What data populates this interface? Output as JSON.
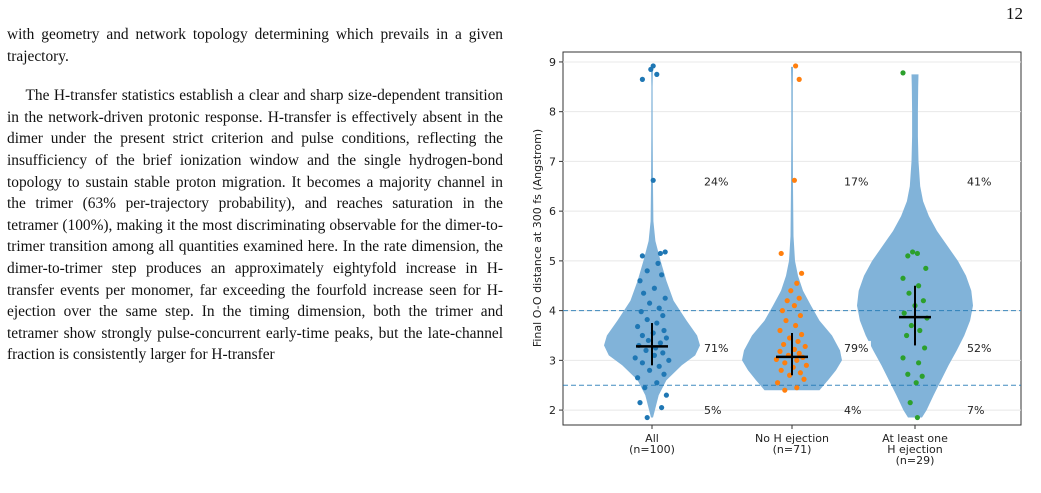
{
  "page": {
    "number": "12"
  },
  "paragraphs": [
    "with geometry and network topology determining which prevails in a given trajectory.",
    "The H-transfer statistics establish a clear and sharp size-dependent transition in the network-driven protonic response. H-transfer is effectively absent in the dimer under the present strict criterion and pulse conditions, reflecting the insufficiency of the brief ionization window and the single hydrogen-bond topology to sustain stable proton migration. It becomes a majority channel in the trimer (63% per-trajectory probability), and reaches saturation in the tetramer (100%), making it the most discriminating observable for the dimer-to-trimer transition among all quantities examined here. In the rate dimension, the dimer-to-trimer step produces an approximately eightyfold increase in H-transfer events per monomer, far exceeding the fourfold increase seen for H-ejection over the same step. In the timing dimension, both the trimer and tetramer show strongly pulse-concurrent early-time peaks, but the late-channel fraction is consistently larger for H-transfer"
  ],
  "chart_data": {
    "type": "violin",
    "ylabel": "Final O-O distance at 300 fs (Angstrom)",
    "ylim": [
      1.7,
      9.2
    ],
    "yticks": [
      2,
      3,
      4,
      5,
      6,
      7,
      8,
      9
    ],
    "grid": true,
    "thresholds": [
      2.5,
      4.0
    ],
    "categories": [
      {
        "lines": [
          "All",
          "(n=100)"
        ],
        "color": "#1f77b4",
        "median": 3.28,
        "ci": [
          2.9,
          3.75
        ],
        "pct_above": "24%",
        "pct_mid": "71%",
        "pct_below": "5%",
        "profile": [
          [
            1.85,
            0.02
          ],
          [
            2.0,
            0.06
          ],
          [
            2.3,
            0.14
          ],
          [
            2.6,
            0.3
          ],
          [
            2.9,
            0.62
          ],
          [
            3.1,
            0.9
          ],
          [
            3.3,
            1.0
          ],
          [
            3.5,
            0.94
          ],
          [
            3.8,
            0.72
          ],
          [
            4.2,
            0.45
          ],
          [
            4.6,
            0.3
          ],
          [
            5.0,
            0.18
          ],
          [
            5.4,
            0.07
          ],
          [
            5.8,
            0.03
          ],
          [
            6.5,
            0.02
          ],
          [
            7.5,
            0.015
          ],
          [
            8.5,
            0.012
          ],
          [
            8.9,
            0.02
          ]
        ],
        "points": [
          [
            1.85,
            -0.2
          ],
          [
            2.05,
            0.4
          ],
          [
            2.15,
            -0.5
          ],
          [
            2.3,
            0.6
          ],
          [
            2.45,
            -0.3
          ],
          [
            2.55,
            0.2
          ],
          [
            2.65,
            -0.6
          ],
          [
            2.72,
            0.5
          ],
          [
            2.8,
            -0.1
          ],
          [
            2.88,
            0.3
          ],
          [
            2.95,
            -0.4
          ],
          [
            3.0,
            0.7
          ],
          [
            3.05,
            -0.7
          ],
          [
            3.1,
            0.1
          ],
          [
            3.15,
            0.45
          ],
          [
            3.2,
            -0.25
          ],
          [
            3.25,
            0.15
          ],
          [
            3.3,
            -0.55
          ],
          [
            3.35,
            0.35
          ],
          [
            3.4,
            -0.15
          ],
          [
            3.45,
            0.6
          ],
          [
            3.5,
            -0.4
          ],
          [
            3.55,
            0.05
          ],
          [
            3.6,
            0.5
          ],
          [
            3.68,
            -0.6
          ],
          [
            3.75,
            0.2
          ],
          [
            3.82,
            -0.2
          ],
          [
            3.9,
            0.45
          ],
          [
            3.98,
            -0.45
          ],
          [
            4.05,
            0.3
          ],
          [
            4.15,
            -0.1
          ],
          [
            4.25,
            0.55
          ],
          [
            4.35,
            -0.35
          ],
          [
            4.45,
            0.1
          ],
          [
            4.6,
            -0.5
          ],
          [
            4.72,
            0.4
          ],
          [
            4.8,
            -0.2
          ],
          [
            4.95,
            0.25
          ],
          [
            5.1,
            -0.4
          ],
          [
            5.15,
            0.35
          ],
          [
            5.18,
            0.55
          ],
          [
            6.62,
            0.05
          ],
          [
            8.65,
            -0.4
          ],
          [
            8.75,
            0.2
          ],
          [
            8.85,
            -0.05
          ],
          [
            8.92,
            0.05
          ]
        ]
      },
      {
        "lines": [
          "No H ejection",
          "(n=71)"
        ],
        "color": "#ff7f0e",
        "median": 3.07,
        "ci": [
          2.7,
          3.55
        ],
        "pct_above": "17%",
        "pct_mid": "79%",
        "pct_below": "4%",
        "profile": [
          [
            2.4,
            0.55
          ],
          [
            2.6,
            0.72
          ],
          [
            2.8,
            0.88
          ],
          [
            3.0,
            1.0
          ],
          [
            3.2,
            0.96
          ],
          [
            3.5,
            0.8
          ],
          [
            3.8,
            0.55
          ],
          [
            4.1,
            0.38
          ],
          [
            4.4,
            0.22
          ],
          [
            4.7,
            0.12
          ],
          [
            5.0,
            0.06
          ],
          [
            5.5,
            0.03
          ],
          [
            6.5,
            0.02
          ],
          [
            7.5,
            0.015
          ],
          [
            8.5,
            0.015
          ],
          [
            8.9,
            0.02
          ]
        ],
        "points": [
          [
            2.4,
            -0.3
          ],
          [
            2.45,
            0.2
          ],
          [
            2.55,
            -0.6
          ],
          [
            2.62,
            0.5
          ],
          [
            2.7,
            -0.1
          ],
          [
            2.75,
            0.35
          ],
          [
            2.8,
            -0.45
          ],
          [
            2.86,
            0.05
          ],
          [
            2.9,
            0.6
          ],
          [
            2.95,
            -0.3
          ],
          [
            3.0,
            0.2
          ],
          [
            3.02,
            -0.65
          ],
          [
            3.06,
            0.45
          ],
          [
            3.1,
            -0.15
          ],
          [
            3.14,
            0.3
          ],
          [
            3.18,
            -0.5
          ],
          [
            3.22,
            0.1
          ],
          [
            3.28,
            0.55
          ],
          [
            3.32,
            -0.35
          ],
          [
            3.38,
            0.25
          ],
          [
            3.45,
            -0.1
          ],
          [
            3.52,
            0.4
          ],
          [
            3.6,
            -0.5
          ],
          [
            3.7,
            0.15
          ],
          [
            3.8,
            -0.25
          ],
          [
            3.9,
            0.35
          ],
          [
            4.0,
            -0.4
          ],
          [
            4.1,
            0.1
          ],
          [
            4.2,
            -0.2
          ],
          [
            4.25,
            0.3
          ],
          [
            4.4,
            -0.05
          ],
          [
            4.55,
            0.2
          ],
          [
            4.75,
            0.4
          ],
          [
            5.15,
            -0.45
          ],
          [
            6.62,
            0.1
          ],
          [
            8.65,
            0.3
          ],
          [
            8.92,
            0.15
          ]
        ]
      },
      {
        "lines": [
          "At least one",
          "H ejection",
          "(n=29)"
        ],
        "color": "#2ca02c",
        "median": 3.87,
        "ci": [
          3.3,
          4.5
        ],
        "pct_above": "41%",
        "pct_mid": "52%",
        "pct_below": "7%",
        "profile": [
          [
            1.85,
            0.12
          ],
          [
            2.0,
            0.2
          ],
          [
            2.3,
            0.32
          ],
          [
            2.6,
            0.45
          ],
          [
            2.9,
            0.58
          ],
          [
            3.2,
            0.72
          ],
          [
            3.5,
            0.85
          ],
          [
            3.8,
            0.95
          ],
          [
            4.1,
            1.0
          ],
          [
            4.4,
            0.97
          ],
          [
            4.7,
            0.88
          ],
          [
            5.0,
            0.74
          ],
          [
            5.3,
            0.56
          ],
          [
            5.6,
            0.38
          ],
          [
            5.9,
            0.24
          ],
          [
            6.2,
            0.14
          ],
          [
            6.5,
            0.09
          ],
          [
            7.0,
            0.06
          ],
          [
            7.5,
            0.05
          ],
          [
            8.0,
            0.05
          ],
          [
            8.5,
            0.055
          ],
          [
            8.75,
            0.06
          ]
        ],
        "points": [
          [
            1.85,
            0.1
          ],
          [
            2.15,
            -0.2
          ],
          [
            2.55,
            0.05
          ],
          [
            2.68,
            0.3
          ],
          [
            2.72,
            -0.3
          ],
          [
            2.95,
            0.15
          ],
          [
            3.05,
            -0.5
          ],
          [
            3.25,
            0.4
          ],
          [
            3.5,
            -0.35
          ],
          [
            3.6,
            0.2
          ],
          [
            3.7,
            -0.15
          ],
          [
            3.85,
            0.5
          ],
          [
            3.95,
            -0.45
          ],
          [
            4.1,
            0.0
          ],
          [
            4.2,
            0.35
          ],
          [
            4.35,
            -0.25
          ],
          [
            4.5,
            0.15
          ],
          [
            4.65,
            -0.5
          ],
          [
            4.85,
            0.45
          ],
          [
            5.1,
            -0.3
          ],
          [
            5.15,
            0.1
          ],
          [
            5.18,
            -0.1
          ],
          [
            8.78,
            -0.5
          ]
        ]
      }
    ]
  }
}
